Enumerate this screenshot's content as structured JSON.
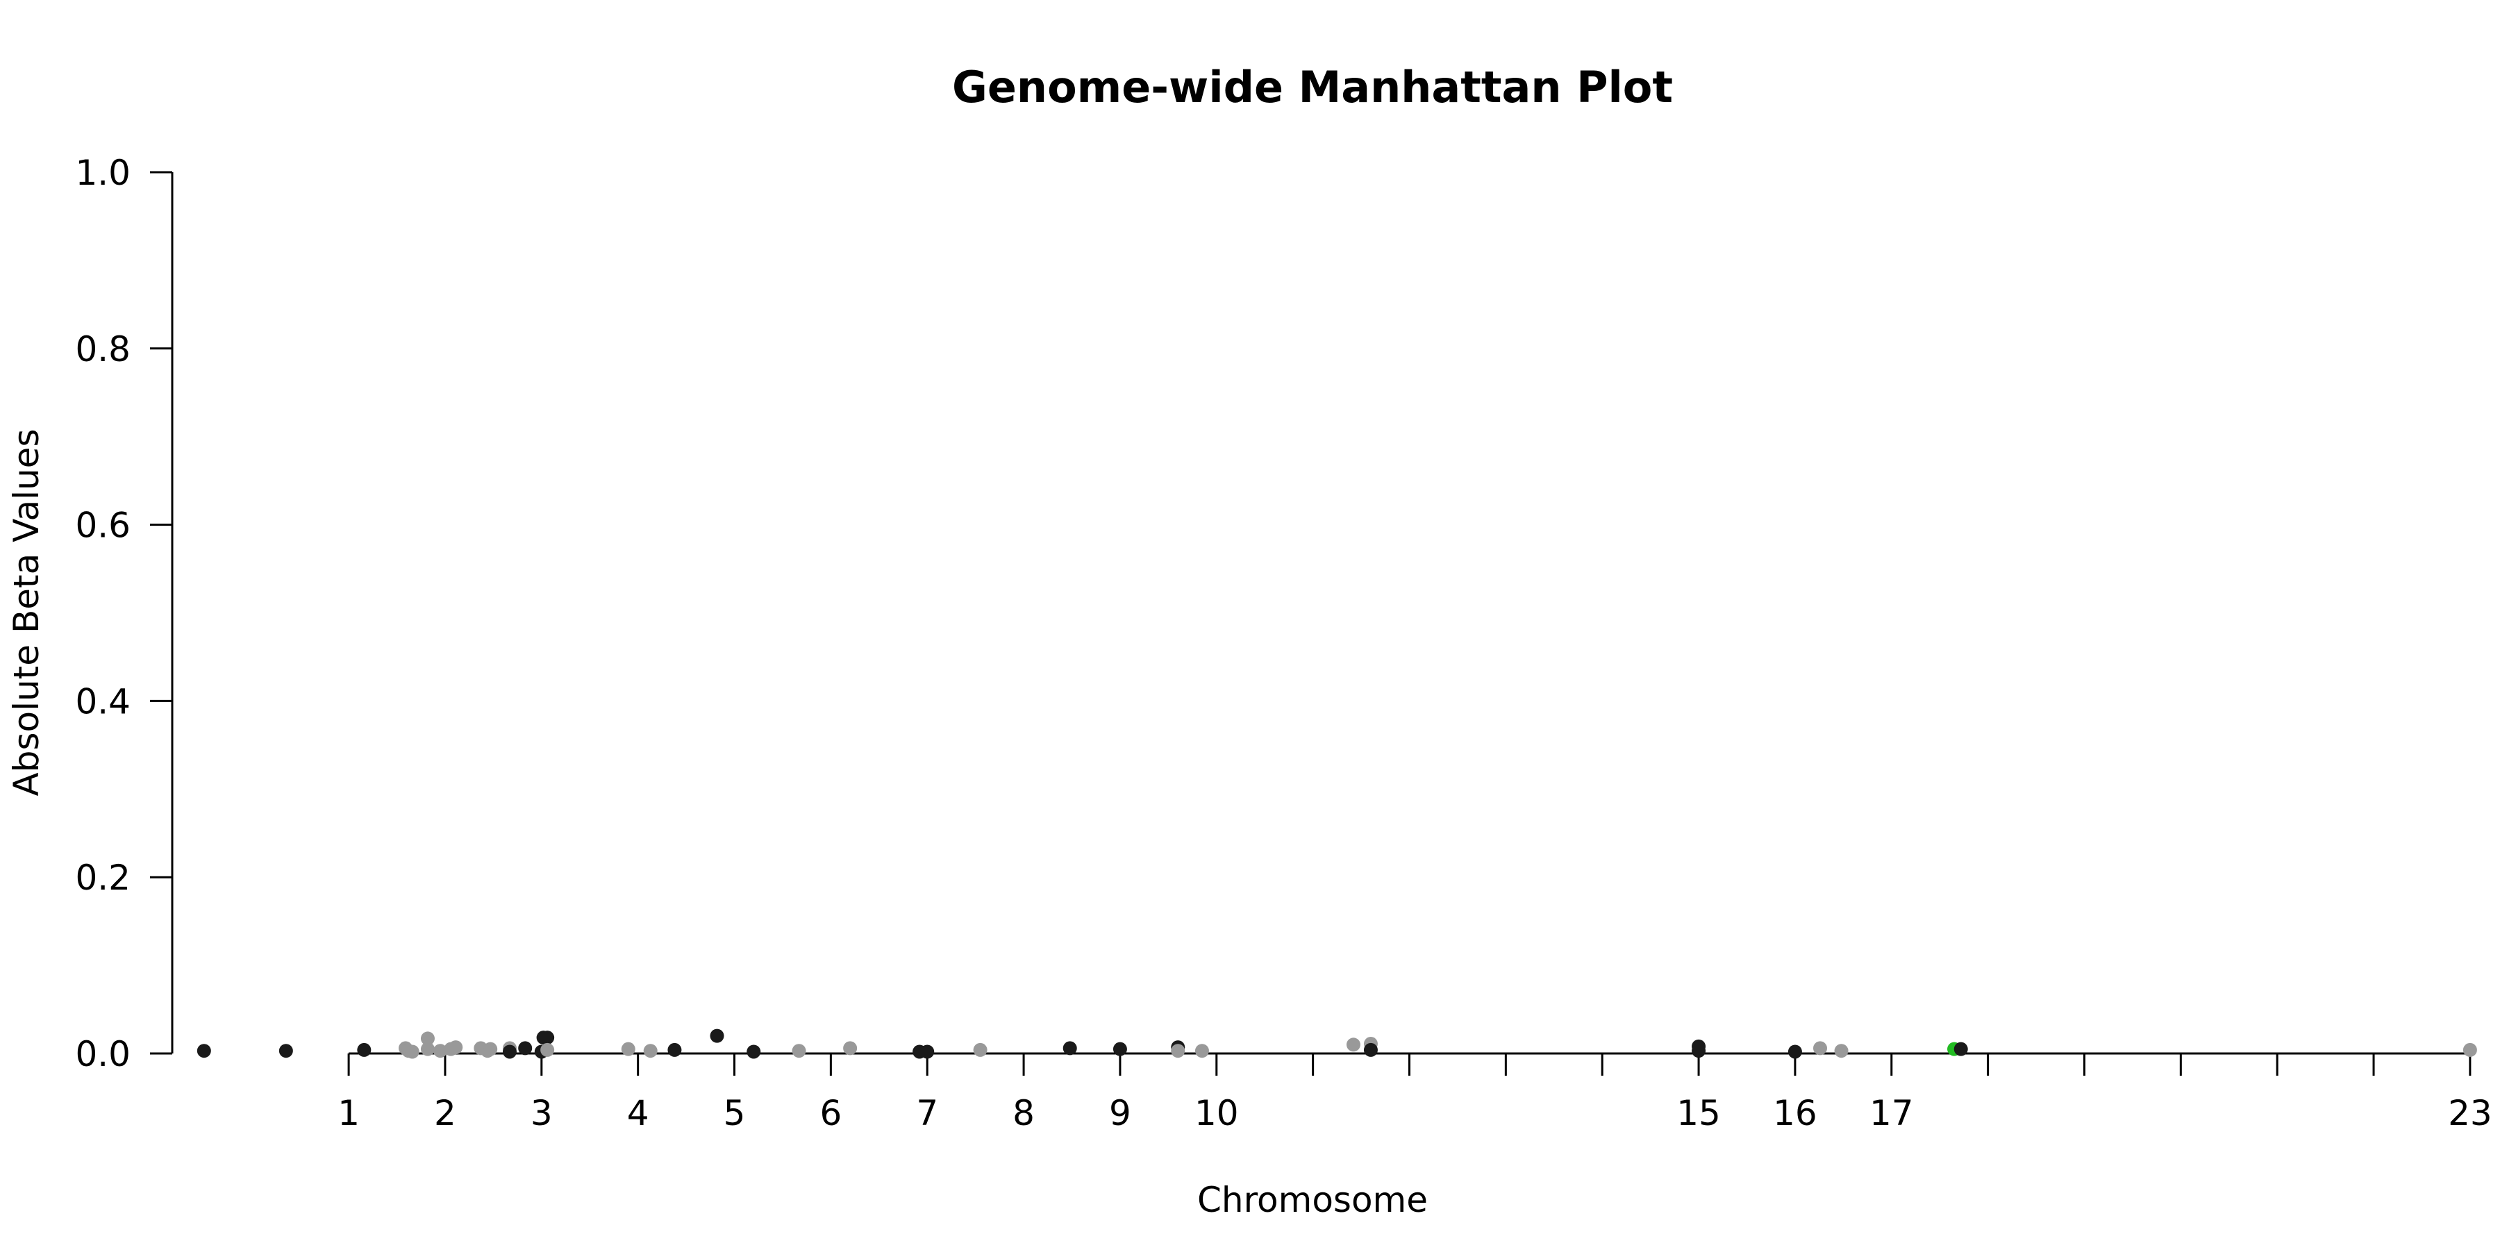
{
  "chart_data": {
    "type": "scatter",
    "title": "Genome-wide Manhattan Plot",
    "xlabel": "Chromosome",
    "ylabel": "Absolute Beta Values",
    "ylim": [
      0,
      1
    ],
    "yticks": [
      "0.0",
      "0.2",
      "0.4",
      "0.6",
      "0.8",
      "1.0"
    ],
    "xlim": [
      -0.83,
      23.08
    ],
    "x_ticks": [
      {
        "label": "1",
        "position": 1
      },
      {
        "label": "2",
        "position": 2
      },
      {
        "label": "3",
        "position": 3
      },
      {
        "label": "4",
        "position": 4
      },
      {
        "label": "5",
        "position": 5
      },
      {
        "label": "6",
        "position": 6
      },
      {
        "label": "7",
        "position": 7
      },
      {
        "label": "8",
        "position": 8
      },
      {
        "label": "9",
        "position": 9
      },
      {
        "label": "10",
        "position": 10
      },
      {
        "label": "",
        "position": 11
      },
      {
        "label": "",
        "position": 12
      },
      {
        "label": "",
        "position": 13
      },
      {
        "label": "",
        "position": 14
      },
      {
        "label": "15",
        "position": 15
      },
      {
        "label": "16",
        "position": 16
      },
      {
        "label": "17",
        "position": 17
      },
      {
        "label": "",
        "position": 18
      },
      {
        "label": "",
        "position": 19
      },
      {
        "label": "",
        "position": 20
      },
      {
        "label": "",
        "position": 21
      },
      {
        "label": "",
        "position": 22
      },
      {
        "label": "23",
        "position": 23
      }
    ],
    "colors": {
      "dark": "#1a1a1a",
      "light": "#999999",
      "highlight": "#22bb22"
    },
    "points": [
      {
        "x": -0.5,
        "y": 0.003,
        "c": "dark"
      },
      {
        "x": 0.35,
        "y": 0.003,
        "c": "dark"
      },
      {
        "x": 1.16,
        "y": 0.004,
        "c": "dark"
      },
      {
        "x": 1.59,
        "y": 0.006,
        "c": "light"
      },
      {
        "x": 1.62,
        "y": 0.003,
        "c": "light"
      },
      {
        "x": 1.66,
        "y": 0.002,
        "c": "light"
      },
      {
        "x": 1.82,
        "y": 0.017,
        "c": "light"
      },
      {
        "x": 1.82,
        "y": 0.005,
        "c": "light"
      },
      {
        "x": 1.95,
        "y": 0.003,
        "c": "light"
      },
      {
        "x": 2.06,
        "y": 0.005,
        "c": "light"
      },
      {
        "x": 2.11,
        "y": 0.007,
        "c": "light"
      },
      {
        "x": 2.37,
        "y": 0.006,
        "c": "light"
      },
      {
        "x": 2.44,
        "y": 0.003,
        "c": "light"
      },
      {
        "x": 2.47,
        "y": 0.005,
        "c": "light"
      },
      {
        "x": 2.67,
        "y": 0.006,
        "c": "light"
      },
      {
        "x": 2.67,
        "y": 0.002,
        "c": "dark"
      },
      {
        "x": 2.83,
        "y": 0.006,
        "c": "dark"
      },
      {
        "x": 3.0,
        "y": 0.002,
        "c": "dark"
      },
      {
        "x": 3.02,
        "y": 0.018,
        "c": "dark"
      },
      {
        "x": 3.06,
        "y": 0.018,
        "c": "dark"
      },
      {
        "x": 3.06,
        "y": 0.004,
        "c": "light"
      },
      {
        "x": 3.9,
        "y": 0.005,
        "c": "light"
      },
      {
        "x": 4.13,
        "y": 0.003,
        "c": "light"
      },
      {
        "x": 4.38,
        "y": 0.004,
        "c": "dark"
      },
      {
        "x": 4.82,
        "y": 0.02,
        "c": "dark"
      },
      {
        "x": 5.2,
        "y": 0.002,
        "c": "dark"
      },
      {
        "x": 5.67,
        "y": 0.003,
        "c": "light"
      },
      {
        "x": 6.2,
        "y": 0.006,
        "c": "light"
      },
      {
        "x": 6.92,
        "y": 0.002,
        "c": "dark"
      },
      {
        "x": 7.0,
        "y": 0.002,
        "c": "dark"
      },
      {
        "x": 7.55,
        "y": 0.004,
        "c": "light"
      },
      {
        "x": 8.48,
        "y": 0.006,
        "c": "dark"
      },
      {
        "x": 9.0,
        "y": 0.005,
        "c": "dark"
      },
      {
        "x": 9.6,
        "y": 0.007,
        "c": "dark"
      },
      {
        "x": 9.6,
        "y": 0.003,
        "c": "light"
      },
      {
        "x": 9.85,
        "y": 0.003,
        "c": "light"
      },
      {
        "x": 11.42,
        "y": 0.01,
        "c": "light"
      },
      {
        "x": 11.6,
        "y": 0.011,
        "c": "light"
      },
      {
        "x": 11.6,
        "y": 0.004,
        "c": "dark"
      },
      {
        "x": 15.0,
        "y": 0.008,
        "c": "dark"
      },
      {
        "x": 15.0,
        "y": 0.003,
        "c": "dark"
      },
      {
        "x": 16.0,
        "y": 0.002,
        "c": "dark"
      },
      {
        "x": 16.26,
        "y": 0.006,
        "c": "light"
      },
      {
        "x": 16.48,
        "y": 0.003,
        "c": "light"
      },
      {
        "x": 17.65,
        "y": 0.005,
        "c": "highlight"
      },
      {
        "x": 17.72,
        "y": 0.005,
        "c": "dark"
      },
      {
        "x": 23.0,
        "y": 0.004,
        "c": "light"
      }
    ]
  }
}
